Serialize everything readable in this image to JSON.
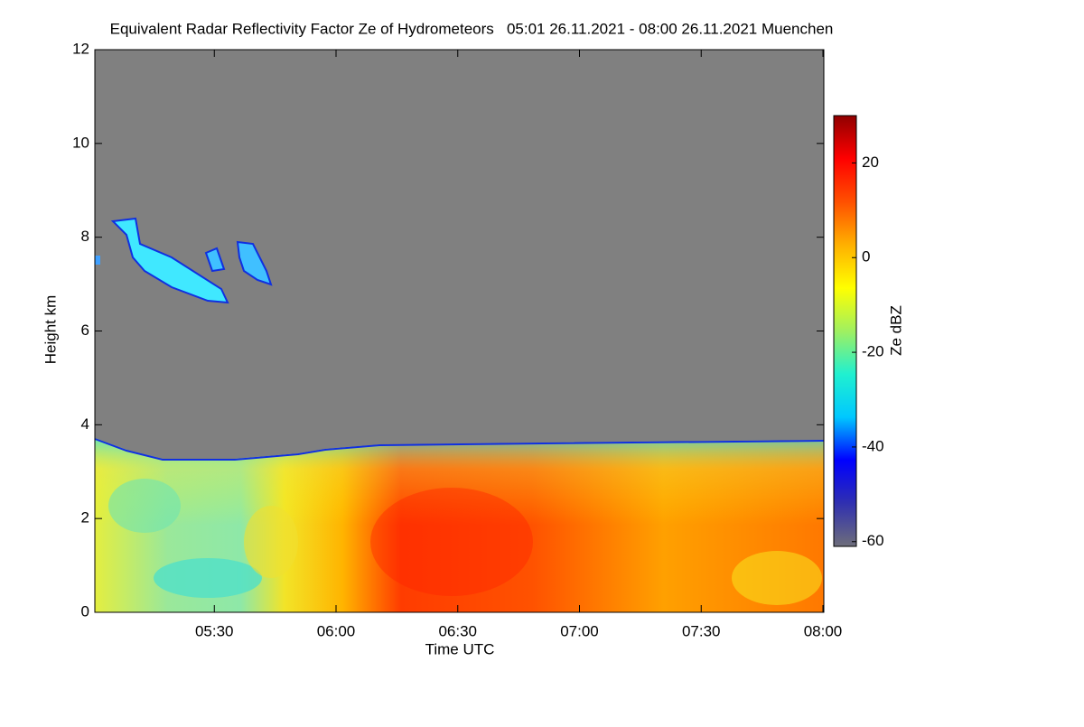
{
  "chart_data": {
    "type": "heatmap",
    "title": "Equivalent Radar Reflectivity Factor Ze of Hydrometeors   05:01 26.11.2021 - 08:00 26.11.2021 Muenchen",
    "xlabel": "Time UTC",
    "ylabel": "Height km",
    "xlim": [
      "05:01",
      "08:00"
    ],
    "xticks": [
      "05:30",
      "06:00",
      "06:30",
      "07:00",
      "07:30",
      "08:00"
    ],
    "ylim": [
      0,
      12
    ],
    "yticks": [
      0,
      2,
      4,
      6,
      8,
      10,
      12
    ],
    "colorbar": {
      "label": "Ze dBZ",
      "lim": [
        -61,
        30
      ],
      "ticks": [
        -60,
        -40,
        -20,
        0,
        20
      ],
      "colors": [
        "#6e6e7a",
        "#3030b0",
        "#0000ff",
        "#00c8ff",
        "#20f0d0",
        "#a0f060",
        "#ffff00",
        "#ffb000",
        "#ff5000",
        "#ff0000",
        "#900000"
      ]
    }
  }
}
